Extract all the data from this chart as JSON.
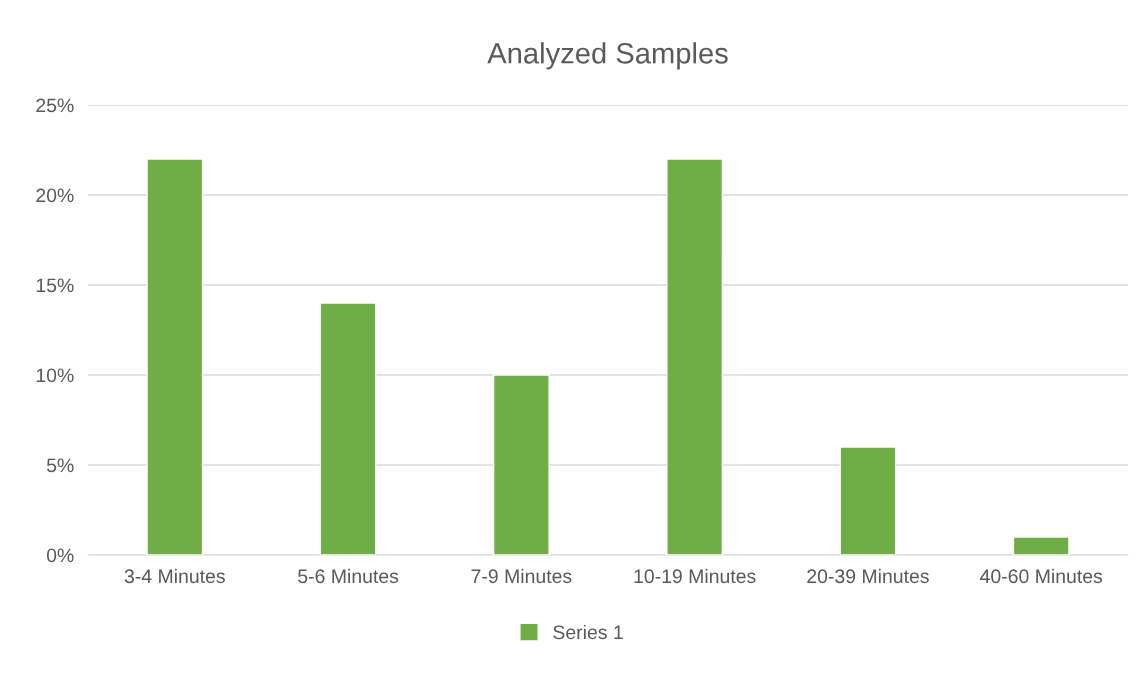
{
  "chart_data": {
    "type": "bar",
    "title": "Analyzed Samples",
    "categories": [
      "3-4 Minutes",
      "5-6 Minutes",
      "7-9 Minutes",
      "10-19 Minutes",
      "20-39 Minutes",
      "40-60 Minutes"
    ],
    "series": [
      {
        "name": "Series 1",
        "color": "#70ad47",
        "values": [
          22,
          14,
          10,
          22,
          6,
          1
        ]
      }
    ],
    "ylim": [
      0,
      25
    ],
    "yticks": [
      {
        "value": 0,
        "label": "0%"
      },
      {
        "value": 5,
        "label": "5%"
      },
      {
        "value": 10,
        "label": "10%"
      },
      {
        "value": 15,
        "label": "15%"
      },
      {
        "value": 20,
        "label": "20%"
      },
      {
        "value": 25,
        "label": "25%"
      }
    ],
    "grid": "y",
    "legend": "bottom"
  }
}
